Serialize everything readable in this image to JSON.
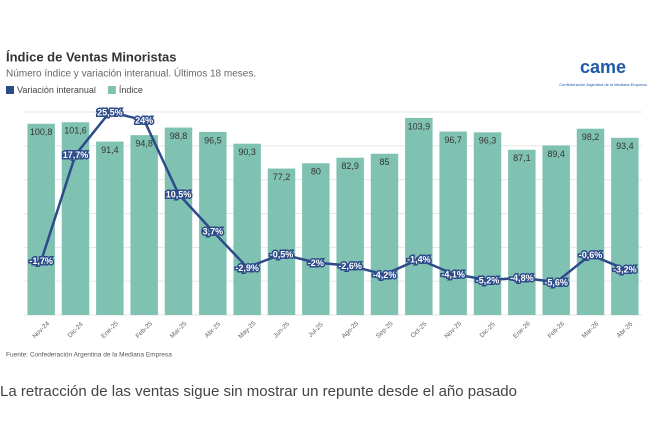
{
  "chart_data": {
    "type": "combo",
    "title": "Índice de Ventas Minoristas",
    "subtitle": "Número índice y variación interanual. Últimos 18 meses.",
    "source": "Fuente: Confederación Argentina de la Mediana Empresa",
    "logo": {
      "text": "came",
      "subtitle": "Confederación Argentina de la Mediana Empresa"
    },
    "categories": [
      "Nov-24",
      "Dic-24",
      "Ene-25",
      "Feb-25",
      "Mar-25",
      "Abr-25",
      "May-25",
      "Jun-25",
      "Jul-25",
      "Ago-25",
      "Sep-25",
      "Oct-25",
      "Nov-25",
      "Dic-25",
      "Ene-26",
      "Feb-26",
      "Mar-26",
      "Abr-26"
    ],
    "series": [
      {
        "name": "Variación interanual",
        "type": "line",
        "axis": "y2",
        "color": "#2d4a8a",
        "values": [
          -1.7,
          17.7,
          25.5,
          24,
          10.5,
          3.7,
          -2.9,
          -0.5,
          -2,
          -2.6,
          -4.2,
          -1.4,
          -4.1,
          -5.2,
          -4.8,
          -5.6,
          -0.6,
          -3.2
        ],
        "value_labels": [
          "-1,7%",
          "17,7%",
          "25,5%",
          "24%",
          "10,5%",
          "3,7%",
          "-2,9%",
          "-0,5%",
          "-2%",
          "-2,6%",
          "-4,2%",
          "-1,4%",
          "-4,1%",
          "-5,2%",
          "-4,8%",
          "-5,6%",
          "-0,6%",
          "-3,2%"
        ]
      },
      {
        "name": "Índice",
        "type": "bar",
        "color": "#80c2b1",
        "values": [
          100.8,
          101.6,
          91.4,
          94.8,
          98.8,
          96.5,
          90.3,
          77.2,
          80,
          82.9,
          85,
          103.9,
          96.7,
          96.3,
          87.1,
          89.4,
          98.2,
          93.4
        ],
        "value_labels": [
          "100,8",
          "101,6",
          "91,4",
          "94,8",
          "98,8",
          "96,5",
          "90,3",
          "77,2",
          "80",
          "82,9",
          "85",
          "103,9",
          "96,7",
          "96,3",
          "87,1",
          "89,4",
          "98,2",
          "93,4"
        ]
      }
    ],
    "ylim": [
      0,
      107
    ],
    "y2lim": [
      -11.6,
      25.5
    ]
  },
  "caption": "La retracción de las ventas sigue sin mostrar un repunte desde el año pasado"
}
